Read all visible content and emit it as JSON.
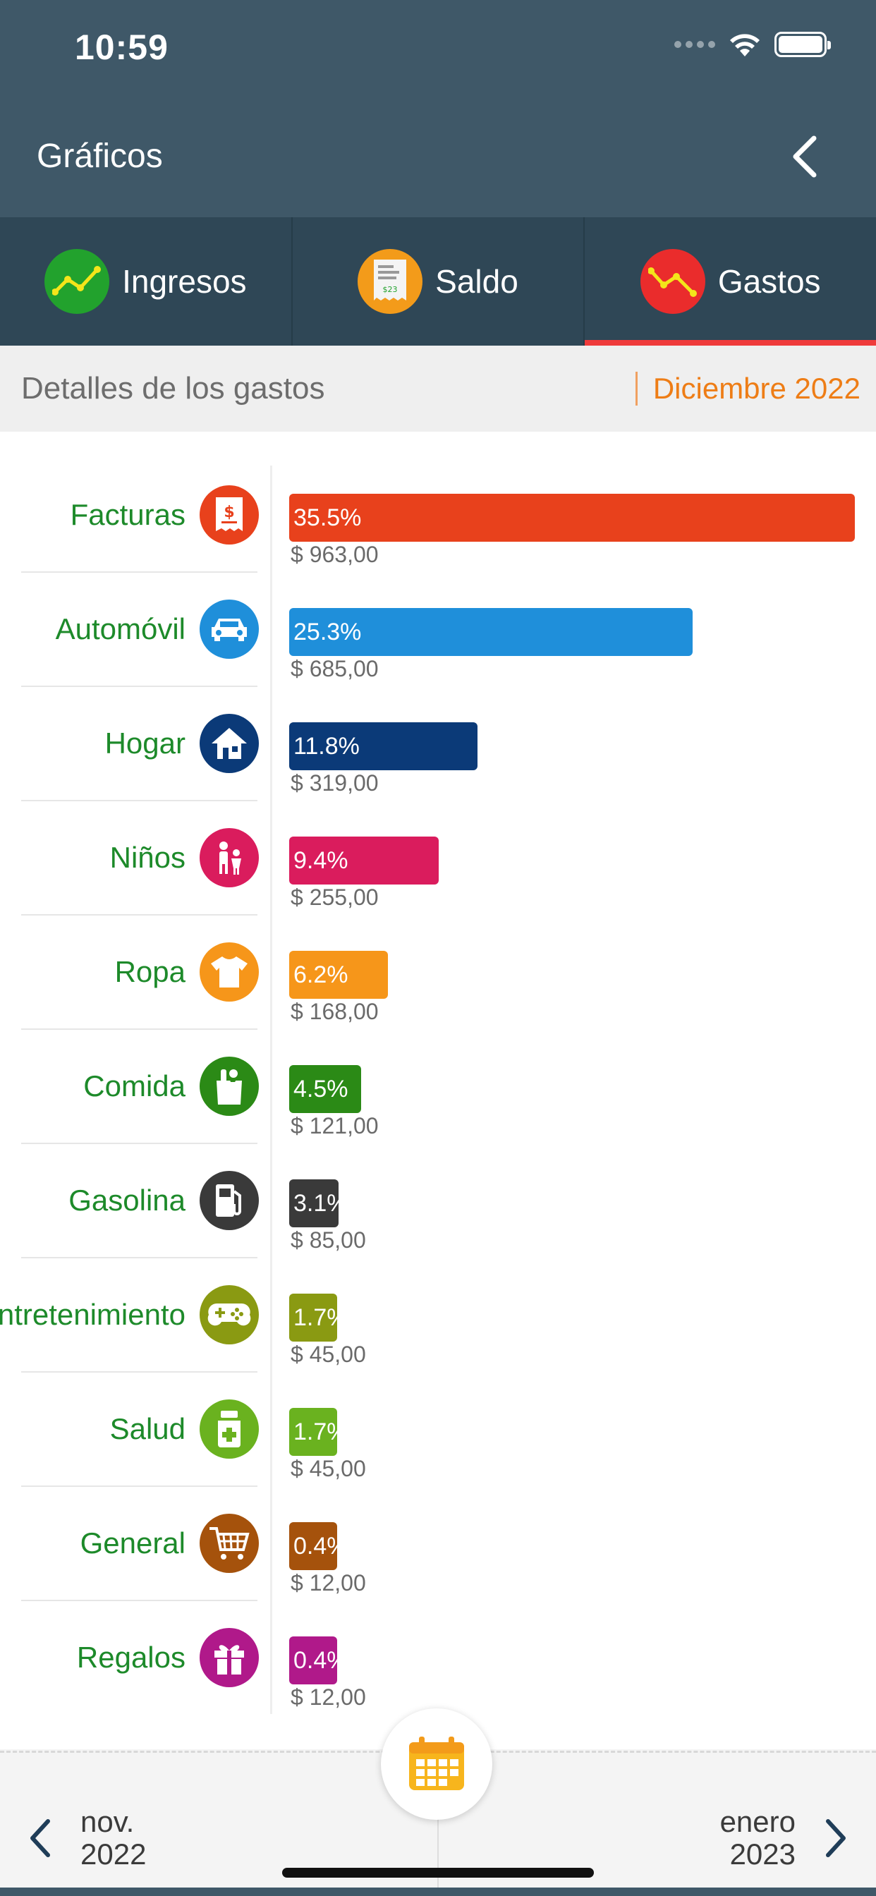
{
  "status_bar": {
    "time": "10:59"
  },
  "nav": {
    "title": "Gráficos"
  },
  "tabs": [
    {
      "label": "Ingresos",
      "icon": "income-chart-icon",
      "color": "#22a22d"
    },
    {
      "label": "Saldo",
      "icon": "receipt-icon",
      "color": "#f39b1a"
    },
    {
      "label": "Gastos",
      "icon": "expense-chart-icon",
      "color": "#ea2c2c",
      "active": true
    }
  ],
  "subheader": {
    "title": "Detalles de los gastos",
    "month": "Diciembre 2022"
  },
  "categories": [
    {
      "label": "Facturas",
      "icon": "bill-icon",
      "color": "#e8411c",
      "percent_label": "35.5%",
      "percent": 35.5,
      "amount": "$ 963,00"
    },
    {
      "label": "Automóvil",
      "icon": "car-icon",
      "color": "#1f8fda",
      "percent_label": "25.3%",
      "percent": 25.3,
      "amount": "$ 685,00"
    },
    {
      "label": "Hogar",
      "icon": "house-icon",
      "color": "#0b3a78",
      "percent_label": "11.8%",
      "percent": 11.8,
      "amount": "$ 319,00"
    },
    {
      "label": "Niños",
      "icon": "children-icon",
      "color": "#da1c5d",
      "percent_label": "9.4%",
      "percent": 9.4,
      "amount": "$ 255,00"
    },
    {
      "label": "Ropa",
      "icon": "shirt-icon",
      "color": "#f6961a",
      "percent_label": "6.2%",
      "percent": 6.2,
      "amount": "$ 168,00"
    },
    {
      "label": "Comida",
      "icon": "grocery-icon",
      "color": "#2b8a16",
      "percent_label": "4.5%",
      "percent": 4.5,
      "amount": "$ 121,00"
    },
    {
      "label": "Gasolina",
      "icon": "fuel-pump-icon",
      "color": "#3a3a3a",
      "percent_label": "3.1%",
      "percent": 3.1,
      "amount": "$ 85,00"
    },
    {
      "label": "Entretenimiento",
      "icon": "gamepad-icon",
      "color": "#8a9a12",
      "percent_label": "1.7%",
      "percent": 1.7,
      "amount": "$ 45,00"
    },
    {
      "label": "Salud",
      "icon": "medicine-icon",
      "color": "#6ab21f",
      "percent_label": "1.7%",
      "percent": 1.7,
      "amount": "$ 45,00"
    },
    {
      "label": "General",
      "icon": "cart-icon",
      "color": "#a5520c",
      "percent_label": "0.4%",
      "percent": 0.4,
      "amount": "$ 12,00"
    },
    {
      "label": "Regalos",
      "icon": "gift-icon",
      "color": "#b0198a",
      "percent_label": "0.4%",
      "percent": 0.4,
      "amount": "$ 12,00"
    }
  ],
  "footer": {
    "prev": {
      "month": "nov.",
      "year": "2022"
    },
    "next": {
      "month": "enero",
      "year": "2023"
    }
  }
}
